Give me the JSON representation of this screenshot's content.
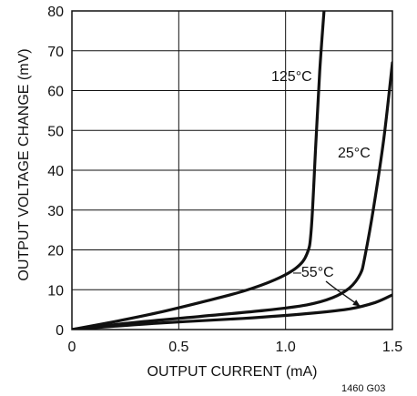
{
  "chart_data": {
    "type": "line",
    "xlabel": "OUTPUT CURRENT (mA)",
    "ylabel": "OUTPUT VOLTAGE CHANGE (mV)",
    "xlim": [
      0,
      1.5
    ],
    "ylim": [
      0,
      80
    ],
    "x_ticks": [
      "0",
      "0.5",
      "1.0",
      "1.5"
    ],
    "y_ticks": [
      "0",
      "10",
      "20",
      "30",
      "40",
      "50",
      "60",
      "70",
      "80"
    ],
    "grid": true,
    "figure_id": "1460 G03",
    "colors": {
      "line": "#111111",
      "grid": "#111111",
      "background": "#ffffff"
    },
    "series": [
      {
        "name": "125°C",
        "points": [
          [
            0,
            0
          ],
          [
            0.2,
            2
          ],
          [
            0.4,
            4.2
          ],
          [
            0.6,
            6.8
          ],
          [
            0.8,
            9.6
          ],
          [
            0.95,
            12.5
          ],
          [
            1.05,
            15.5
          ],
          [
            1.1,
            19
          ],
          [
            1.12,
            25
          ],
          [
            1.14,
            45
          ],
          [
            1.16,
            65
          ],
          [
            1.18,
            80
          ]
        ]
      },
      {
        "name": "25°C",
        "points": [
          [
            0,
            0
          ],
          [
            0.3,
            1.8
          ],
          [
            0.6,
            3.3
          ],
          [
            0.9,
            4.8
          ],
          [
            1.1,
            6.2
          ],
          [
            1.22,
            8
          ],
          [
            1.3,
            10.5
          ],
          [
            1.35,
            14
          ],
          [
            1.37,
            18
          ],
          [
            1.41,
            30
          ],
          [
            1.46,
            48
          ],
          [
            1.5,
            67
          ]
        ]
      },
      {
        "name": "–55°C",
        "points": [
          [
            0,
            0
          ],
          [
            0.4,
            1.6
          ],
          [
            0.8,
            2.8
          ],
          [
            1.1,
            4
          ],
          [
            1.3,
            5.2
          ],
          [
            1.42,
            6.8
          ],
          [
            1.5,
            8.7
          ]
        ]
      }
    ]
  }
}
